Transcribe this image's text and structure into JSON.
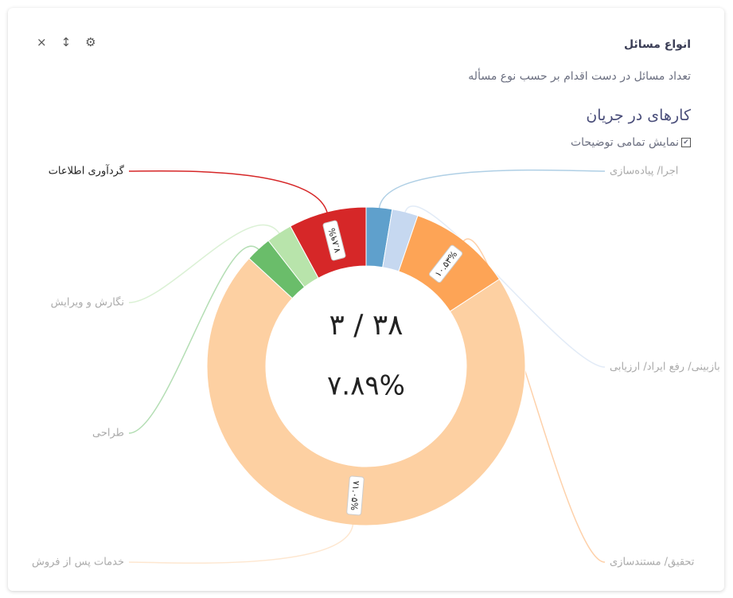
{
  "chart_data": {
    "type": "donut",
    "title": "انواع مسائل",
    "subtitle": "تعداد مسائل در دست اقدام بر حسب نوع مسأله",
    "chart_title": "کارهای در جریان",
    "toggle_label": "نمایش تمامی توضیحات",
    "center_value": "۳ / ۳۸",
    "center_percent": "۷.۸۹%",
    "categories": [
      "اجرا/ پیاده‌سازی",
      "بازبینی/ رفع ایراد/ ارزیابی",
      "تحقیق/ مستندسازی",
      "خدمات پس از فروش",
      "طراحی",
      "نگارش و ویرایش",
      "گردآوری اطلاعات"
    ],
    "values": [
      2.63,
      2.63,
      10.53,
      71.05,
      2.63,
      2.63,
      7.89
    ],
    "value_labels": [
      null,
      null,
      "۱۰.۵۳%",
      "۷۱.۰۵%",
      null,
      null,
      "۷.۸۹%"
    ],
    "colors": [
      "#5fa0cc",
      "#c6d8f0",
      "#fda456",
      "#fdd0a2",
      "#6abd6a",
      "#b8e4ab",
      "#d62728"
    ]
  }
}
